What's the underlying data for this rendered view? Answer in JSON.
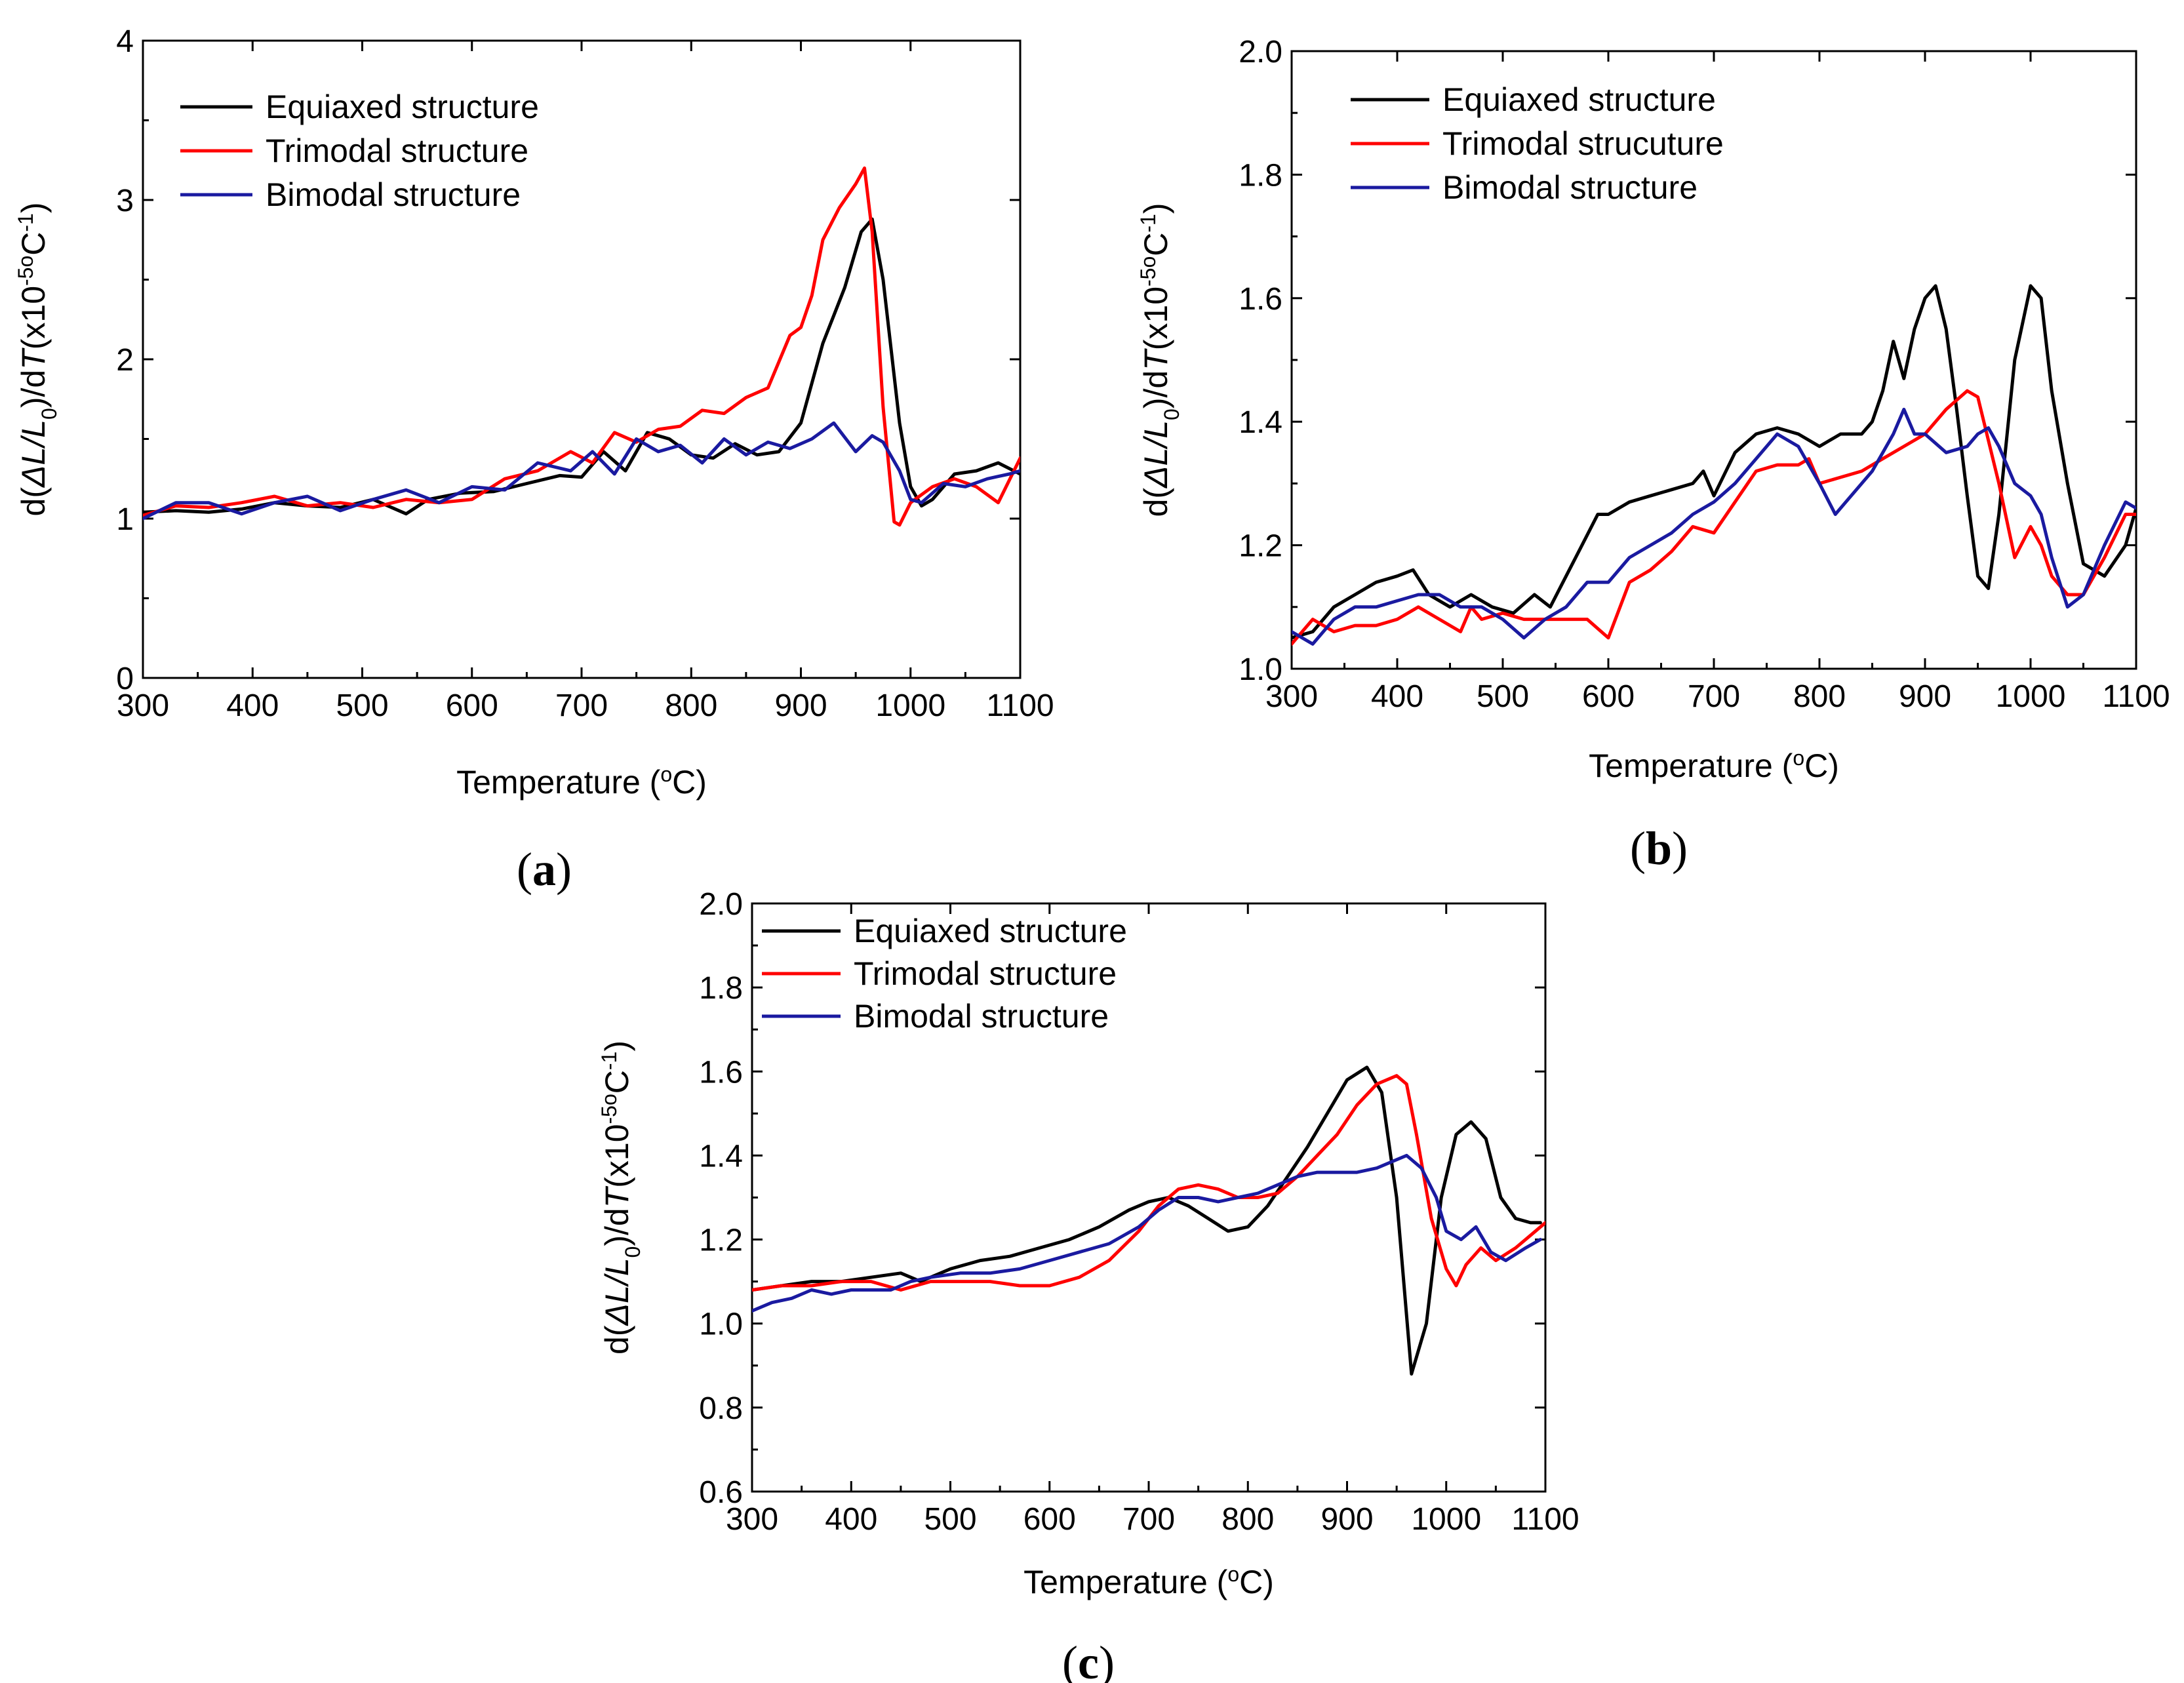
{
  "chart_data": [
    {
      "type": "line",
      "panel_label": "a",
      "xlabel": "Temperature (",
      "xlabel_sup": "o",
      "xlabel_end": "C)",
      "ylabel": {
        "pre": "d(",
        "delta_italic": "ΔL/L",
        "sub": "0",
        "mid": ")/d",
        "t_italic": "T",
        "unit_pre": "(x10",
        "sup": "-5o",
        "unit_c": "C",
        "sup2": "-1",
        "close": ")"
      },
      "xlim": [
        300,
        1100
      ],
      "ylim": [
        0,
        4
      ],
      "xticks": [
        "300",
        "400",
        "500",
        "600",
        "700",
        "800",
        "900",
        "1000",
        "1100"
      ],
      "yticks": [
        "0",
        "1",
        "2",
        "3",
        "4"
      ],
      "legend": {
        "position": "top-left"
      },
      "series": [
        {
          "name": "Equiaxed structure",
          "color": "#000000",
          "x": [
            300,
            330,
            360,
            390,
            420,
            450,
            480,
            510,
            540,
            560,
            590,
            620,
            650,
            680,
            700,
            720,
            740,
            760,
            780,
            800,
            820,
            840,
            860,
            880,
            900,
            920,
            940,
            955,
            965,
            975,
            990,
            1000,
            1010,
            1020,
            1040,
            1060,
            1080,
            1100
          ],
          "y": [
            1.04,
            1.05,
            1.04,
            1.06,
            1.1,
            1.08,
            1.07,
            1.12,
            1.03,
            1.12,
            1.16,
            1.17,
            1.22,
            1.27,
            1.26,
            1.42,
            1.3,
            1.54,
            1.5,
            1.4,
            1.38,
            1.47,
            1.4,
            1.42,
            1.6,
            2.1,
            2.45,
            2.8,
            2.88,
            2.5,
            1.6,
            1.2,
            1.08,
            1.12,
            1.28,
            1.3,
            1.35,
            1.28
          ]
        },
        {
          "name": "Trimodal structure",
          "color": "#ff0000",
          "x": [
            300,
            330,
            360,
            390,
            420,
            450,
            480,
            510,
            540,
            570,
            600,
            630,
            660,
            690,
            710,
            730,
            750,
            770,
            790,
            810,
            830,
            850,
            870,
            890,
            900,
            910,
            920,
            935,
            950,
            958,
            965,
            975,
            985,
            990,
            1000,
            1020,
            1040,
            1060,
            1080,
            1100
          ],
          "y": [
            1.02,
            1.08,
            1.07,
            1.1,
            1.14,
            1.08,
            1.1,
            1.07,
            1.12,
            1.1,
            1.12,
            1.25,
            1.3,
            1.42,
            1.35,
            1.54,
            1.48,
            1.56,
            1.58,
            1.68,
            1.66,
            1.76,
            1.82,
            2.15,
            2.2,
            2.4,
            2.75,
            2.95,
            3.1,
            3.2,
            2.8,
            1.7,
            0.98,
            0.96,
            1.1,
            1.2,
            1.25,
            1.2,
            1.1,
            1.38
          ]
        },
        {
          "name": "Bimodal structure",
          "color": "#1a1aa0",
          "x": [
            300,
            330,
            360,
            390,
            420,
            450,
            480,
            510,
            540,
            570,
            600,
            630,
            660,
            690,
            710,
            730,
            750,
            770,
            790,
            810,
            830,
            850,
            870,
            890,
            910,
            930,
            950,
            965,
            975,
            990,
            1000,
            1010,
            1030,
            1050,
            1070,
            1090,
            1100
          ],
          "y": [
            1.0,
            1.1,
            1.1,
            1.03,
            1.1,
            1.14,
            1.05,
            1.12,
            1.18,
            1.1,
            1.2,
            1.18,
            1.35,
            1.3,
            1.42,
            1.28,
            1.5,
            1.42,
            1.46,
            1.35,
            1.5,
            1.4,
            1.48,
            1.44,
            1.5,
            1.6,
            1.42,
            1.52,
            1.48,
            1.3,
            1.12,
            1.1,
            1.22,
            1.2,
            1.25,
            1.28,
            1.3
          ]
        }
      ]
    },
    {
      "type": "line",
      "panel_label": "b",
      "xlabel": "Temperature (",
      "xlabel_sup": "o",
      "xlabel_end": "C)",
      "ylabel": {
        "pre": "d(",
        "delta_italic": "ΔL/L",
        "sub": "0",
        "mid": ")/d",
        "t_italic": "T",
        "unit_pre": "(x10",
        "sup": "-5o",
        "unit_c": "C",
        "sup2": "-1",
        "close": ")"
      },
      "xlim": [
        300,
        1100
      ],
      "ylim": [
        1.0,
        2.0
      ],
      "xticks": [
        "300",
        "400",
        "500",
        "600",
        "700",
        "800",
        "900",
        "1000",
        "1100"
      ],
      "yticks": [
        "1.0",
        "1.2",
        "1.4",
        "1.6",
        "1.8",
        "2.0"
      ],
      "legend": {
        "position": "top-left"
      },
      "series": [
        {
          "name": "Equiaxed structure",
          "color": "#000000",
          "x": [
            300,
            320,
            340,
            360,
            380,
            400,
            415,
            430,
            450,
            470,
            490,
            510,
            530,
            545,
            560,
            575,
            590,
            600,
            620,
            640,
            660,
            680,
            690,
            700,
            720,
            740,
            760,
            780,
            800,
            820,
            840,
            850,
            860,
            870,
            880,
            890,
            900,
            910,
            920,
            930,
            940,
            950,
            960,
            970,
            985,
            1000,
            1010,
            1020,
            1035,
            1050,
            1070,
            1090,
            1100
          ],
          "y": [
            1.05,
            1.06,
            1.1,
            1.12,
            1.14,
            1.15,
            1.16,
            1.12,
            1.1,
            1.12,
            1.1,
            1.09,
            1.12,
            1.1,
            1.15,
            1.2,
            1.25,
            1.25,
            1.27,
            1.28,
            1.29,
            1.3,
            1.32,
            1.28,
            1.35,
            1.38,
            1.39,
            1.38,
            1.36,
            1.38,
            1.38,
            1.4,
            1.45,
            1.53,
            1.47,
            1.55,
            1.6,
            1.62,
            1.55,
            1.42,
            1.28,
            1.15,
            1.13,
            1.25,
            1.5,
            1.62,
            1.6,
            1.45,
            1.3,
            1.17,
            1.15,
            1.2,
            1.26
          ]
        },
        {
          "name": "Trimodal strucuture",
          "color": "#ff0000",
          "x": [
            300,
            320,
            340,
            360,
            380,
            400,
            420,
            440,
            460,
            470,
            480,
            500,
            520,
            540,
            560,
            580,
            600,
            620,
            640,
            660,
            680,
            700,
            720,
            740,
            760,
            780,
            790,
            800,
            820,
            840,
            860,
            880,
            900,
            920,
            940,
            950,
            970,
            985,
            1000,
            1010,
            1020,
            1035,
            1050,
            1070,
            1090,
            1100
          ],
          "y": [
            1.04,
            1.08,
            1.06,
            1.07,
            1.07,
            1.08,
            1.1,
            1.08,
            1.06,
            1.1,
            1.08,
            1.09,
            1.08,
            1.08,
            1.08,
            1.08,
            1.05,
            1.14,
            1.16,
            1.19,
            1.23,
            1.22,
            1.27,
            1.32,
            1.33,
            1.33,
            1.34,
            1.3,
            1.31,
            1.32,
            1.34,
            1.36,
            1.38,
            1.42,
            1.45,
            1.44,
            1.3,
            1.18,
            1.23,
            1.2,
            1.15,
            1.12,
            1.12,
            1.18,
            1.25,
            1.25
          ]
        },
        {
          "name": "Bimodal structure",
          "color": "#1a1aa0",
          "x": [
            300,
            320,
            340,
            360,
            380,
            400,
            420,
            440,
            460,
            480,
            500,
            520,
            540,
            560,
            580,
            600,
            620,
            640,
            660,
            680,
            700,
            720,
            740,
            760,
            780,
            800,
            815,
            830,
            850,
            870,
            880,
            890,
            900,
            920,
            940,
            950,
            960,
            970,
            985,
            1000,
            1010,
            1020,
            1035,
            1050,
            1070,
            1090,
            1100
          ],
          "y": [
            1.06,
            1.04,
            1.08,
            1.1,
            1.1,
            1.11,
            1.12,
            1.12,
            1.1,
            1.1,
            1.08,
            1.05,
            1.08,
            1.1,
            1.14,
            1.14,
            1.18,
            1.2,
            1.22,
            1.25,
            1.27,
            1.3,
            1.34,
            1.38,
            1.36,
            1.3,
            1.25,
            1.28,
            1.32,
            1.38,
            1.42,
            1.38,
            1.38,
            1.35,
            1.36,
            1.38,
            1.39,
            1.36,
            1.3,
            1.28,
            1.25,
            1.18,
            1.1,
            1.12,
            1.2,
            1.27,
            1.26
          ]
        }
      ]
    },
    {
      "type": "line",
      "panel_label": "c",
      "xlabel": "Temperature (",
      "xlabel_sup": "o",
      "xlabel_end": "C)",
      "ylabel": {
        "pre": "d(",
        "delta_italic": "ΔL/L",
        "sub": "0",
        "mid": ")/d",
        "t_italic": "T",
        "unit_pre": "(x10",
        "sup": "-5o",
        "unit_c": "C",
        "sup2": "-1",
        "close": ")"
      },
      "xlim": [
        300,
        1100
      ],
      "ylim": [
        0.6,
        2.0
      ],
      "xticks": [
        "300",
        "400",
        "500",
        "600",
        "700",
        "800",
        "900",
        "1000",
        "1100"
      ],
      "yticks": [
        "0.6",
        "0.8",
        "1.0",
        "1.2",
        "1.4",
        "1.6",
        "1.8",
        "2.0"
      ],
      "legend": {
        "position": "top-left"
      },
      "series": [
        {
          "name": "Equiaxed structure",
          "color": "#000000",
          "x": [
            300,
            330,
            360,
            390,
            420,
            450,
            470,
            500,
            530,
            560,
            590,
            620,
            650,
            680,
            700,
            720,
            740,
            760,
            780,
            800,
            820,
            840,
            860,
            880,
            900,
            920,
            935,
            950,
            965,
            980,
            995,
            1010,
            1025,
            1040,
            1055,
            1070,
            1085,
            1095
          ],
          "y": [
            1.08,
            1.09,
            1.1,
            1.1,
            1.11,
            1.12,
            1.1,
            1.13,
            1.15,
            1.16,
            1.18,
            1.2,
            1.23,
            1.27,
            1.29,
            1.3,
            1.28,
            1.25,
            1.22,
            1.23,
            1.28,
            1.35,
            1.42,
            1.5,
            1.58,
            1.61,
            1.55,
            1.3,
            0.88,
            1.0,
            1.3,
            1.45,
            1.48,
            1.44,
            1.3,
            1.25,
            1.24,
            1.24
          ]
        },
        {
          "name": "Trimodal structure",
          "color": "#ff0000",
          "x": [
            300,
            330,
            360,
            390,
            420,
            450,
            480,
            510,
            540,
            570,
            600,
            630,
            660,
            690,
            710,
            730,
            750,
            770,
            790,
            810,
            830,
            850,
            870,
            890,
            910,
            930,
            950,
            960,
            970,
            985,
            1000,
            1010,
            1020,
            1035,
            1050,
            1070,
            1090,
            1100
          ],
          "y": [
            1.08,
            1.09,
            1.09,
            1.1,
            1.1,
            1.08,
            1.1,
            1.1,
            1.1,
            1.09,
            1.09,
            1.11,
            1.15,
            1.22,
            1.28,
            1.32,
            1.33,
            1.32,
            1.3,
            1.3,
            1.31,
            1.35,
            1.4,
            1.45,
            1.52,
            1.57,
            1.59,
            1.57,
            1.45,
            1.25,
            1.13,
            1.09,
            1.14,
            1.18,
            1.15,
            1.18,
            1.22,
            1.24
          ]
        },
        {
          "name": "Bimodal structure",
          "color": "#1a1aa0",
          "x": [
            300,
            320,
            340,
            360,
            380,
            400,
            420,
            440,
            460,
            480,
            510,
            540,
            570,
            600,
            630,
            660,
            690,
            710,
            730,
            750,
            770,
            790,
            810,
            830,
            850,
            870,
            890,
            910,
            930,
            950,
            960,
            975,
            990,
            1000,
            1015,
            1030,
            1045,
            1060,
            1080,
            1095
          ],
          "y": [
            1.03,
            1.05,
            1.06,
            1.08,
            1.07,
            1.08,
            1.08,
            1.08,
            1.1,
            1.11,
            1.12,
            1.12,
            1.13,
            1.15,
            1.17,
            1.19,
            1.23,
            1.27,
            1.3,
            1.3,
            1.29,
            1.3,
            1.31,
            1.33,
            1.35,
            1.36,
            1.36,
            1.36,
            1.37,
            1.39,
            1.4,
            1.37,
            1.3,
            1.22,
            1.2,
            1.23,
            1.17,
            1.15,
            1.18,
            1.2
          ]
        }
      ]
    }
  ]
}
